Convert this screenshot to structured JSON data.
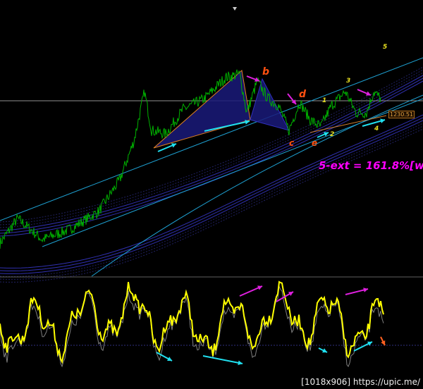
{
  "watermark": "[1018x906] https://upic.me/",
  "annotation_text": "5-ext = 161.8%[w",
  "price_label": "1230.51",
  "colors": {
    "price": "#00b000",
    "channel": "#1e9fd0",
    "pattern_fill": "#1a1a7a",
    "pattern_edge": "#e08020",
    "oscillator": "#ffff00",
    "oscillator_signal": "#808080",
    "arrow_magenta": "#e020e0",
    "arrow_cyan": "#20e0f0",
    "wave_label": "#e8e020",
    "pattern_label": "#ff5010"
  },
  "chart_data": [
    {
      "type": "line",
      "title": "",
      "series": [
        {
          "values_anchor_x_bar": [
            0,
            25,
            60,
            100,
            140,
            170,
            190,
            205,
            215,
            235,
            260,
            290,
            320,
            340,
            350,
            365,
            380,
            395,
            410,
            425,
            440,
            455,
            470,
            490,
            505,
            520,
            530,
            540
          ],
          "values": [
            1139.0,
            1156.5,
            1141.5,
            1149.0,
            1161.5,
            1184.0,
            1211.5,
            1246.5,
            1219.0,
            1216.5,
            1234.0,
            1241.5,
            1256.5,
            1259.0,
            1231.5,
            1254.0,
            1241.5,
            1236.5,
            1219.0,
            1239.0,
            1226.5,
            1221.5,
            1236.5,
            1246.5,
            1231.5,
            1231.5,
            1246.5,
            1241.5
          ]
        }
      ],
      "horizontal_level": 1240.0,
      "last_price_label": "1230.51",
      "pattern_labels": [
        "b",
        "c",
        "d",
        "e"
      ],
      "wave_labels": [
        "1",
        "2",
        "3",
        "4",
        "5"
      ],
      "grid": false
    },
    {
      "type": "line",
      "title": "",
      "description_level": "oscillator",
      "grid": false
    }
  ],
  "labels": {
    "b": "b",
    "c": "c",
    "d": "d",
    "e": "e",
    "w1": "1",
    "w2": "2",
    "w3": "3",
    "w4": "4",
    "w5": "5"
  }
}
